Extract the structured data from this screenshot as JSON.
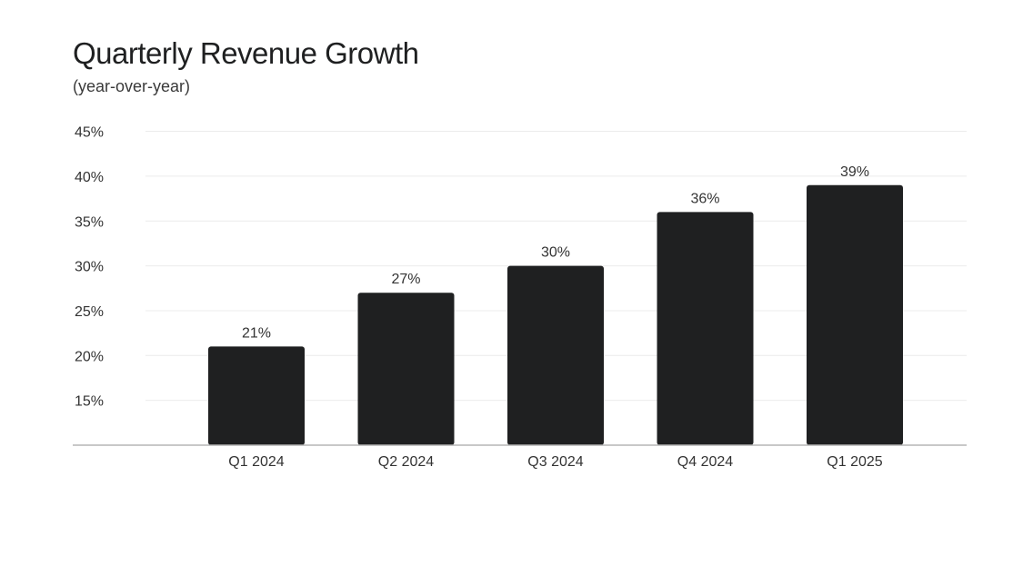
{
  "chart_data": {
    "type": "bar",
    "title": "Quarterly Revenue Growth",
    "subtitle": "(year-over-year)",
    "xlabel": "",
    "ylabel": "",
    "categories": [
      "Q1 2024",
      "Q2 2024",
      "Q3 2024",
      "Q4 2024",
      "Q1 2025"
    ],
    "values": [
      21,
      27,
      30,
      36,
      39
    ],
    "data_labels": [
      "21%",
      "27%",
      "30%",
      "36%",
      "39%"
    ],
    "ylim": [
      10,
      45
    ],
    "yticks": [
      15,
      20,
      25,
      30,
      35,
      40,
      45
    ],
    "ytick_labels": [
      "15%",
      "20%",
      "25%",
      "30%",
      "35%",
      "40%",
      "45%"
    ],
    "grid": true,
    "legend": "none",
    "bar_color": "#1f2021",
    "grid_color": "#ececec",
    "axis_color": "#b5b5b5"
  }
}
